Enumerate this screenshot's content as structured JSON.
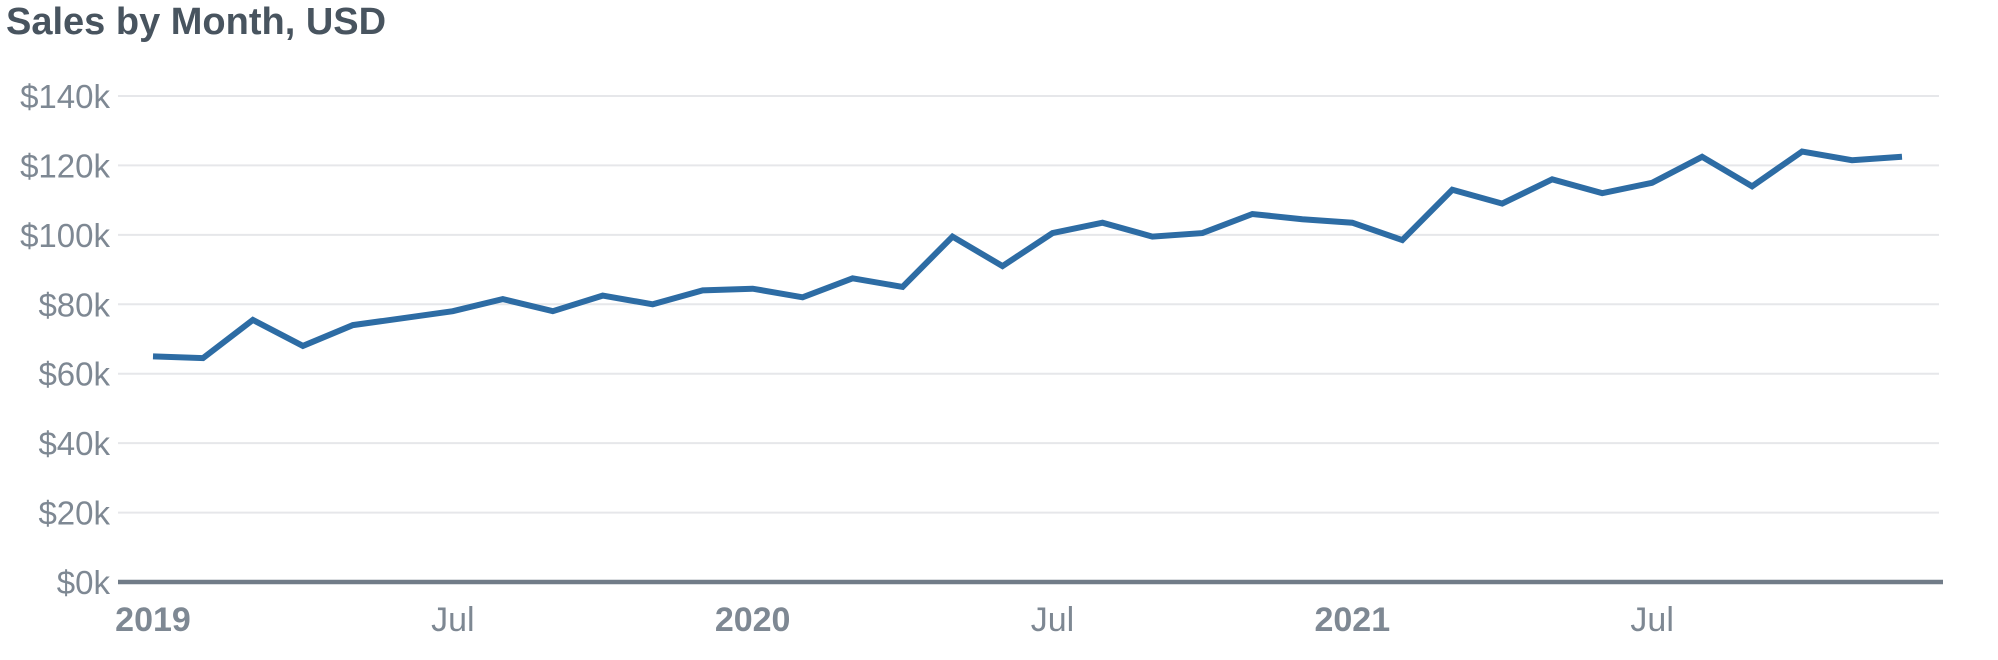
{
  "chart": {
    "title": "Sales by Month, USD"
  },
  "chart_data": {
    "type": "line",
    "title": "Sales by Month, USD",
    "unit": "USD thousands",
    "x": [
      "Jan 2019",
      "Feb 2019",
      "Mar 2019",
      "Apr 2019",
      "May 2019",
      "Jun 2019",
      "Jul 2019",
      "Aug 2019",
      "Sep 2019",
      "Oct 2019",
      "Nov 2019",
      "Dec 2019",
      "Jan 2020",
      "Feb 2020",
      "Mar 2020",
      "Apr 2020",
      "May 2020",
      "Jun 2020",
      "Jul 2020",
      "Aug 2020",
      "Sep 2020",
      "Oct 2020",
      "Nov 2020",
      "Dec 2020",
      "Jan 2021",
      "Feb 2021",
      "Mar 2021",
      "Apr 2021",
      "May 2021",
      "Jun 2021",
      "Jul 2021",
      "Aug 2021",
      "Sep 2021",
      "Oct 2021",
      "Nov 2021",
      "Dec 2021"
    ],
    "series": [
      {
        "name": "Sales",
        "values": [
          65,
          64.5,
          75.5,
          68,
          74,
          76,
          78,
          81.5,
          78,
          82.5,
          80,
          84,
          84.5,
          82,
          87.5,
          85,
          99.5,
          91,
          100.5,
          103.5,
          99.5,
          100.5,
          106,
          104.5,
          103.5,
          98.5,
          113,
          109,
          116,
          112,
          115,
          122.5,
          114,
          124,
          121.5,
          122.5
        ]
      }
    ],
    "xlabel": "",
    "ylabel": "",
    "ylim": [
      0,
      140
    ],
    "y_tick_step": 20,
    "y_ticks": [
      "$0k",
      "$20k",
      "$40k",
      "$60k",
      "$80k",
      "$100k",
      "$120k",
      "$140k"
    ],
    "x_ticks": [
      {
        "index": 0,
        "label": "2019",
        "bold": true
      },
      {
        "index": 6,
        "label": "Jul",
        "bold": false
      },
      {
        "index": 12,
        "label": "2020",
        "bold": true
      },
      {
        "index": 18,
        "label": "Jul",
        "bold": false
      },
      {
        "index": 24,
        "label": "2021",
        "bold": true
      },
      {
        "index": 30,
        "label": "Jul",
        "bold": false
      }
    ],
    "grid": "horizontal",
    "legend": "none",
    "colors": {
      "line": "#2d6ca4",
      "title": "#48545f",
      "tick_label": "#7e8893",
      "gridline": "#e6e7ea",
      "axis_line": "#717c88",
      "background": "#ffffff"
    }
  }
}
